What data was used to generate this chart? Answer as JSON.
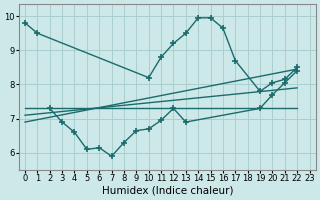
{
  "bg_color": "#cde8e8",
  "grid_color": "#aacfcf",
  "line_color": "#1a6b6b",
  "marker": "+",
  "markersize": 4,
  "linewidth": 1.0,
  "series1_x": [
    0,
    1,
    10,
    11,
    12,
    13,
    14,
    15,
    16,
    17,
    19,
    20,
    21,
    22
  ],
  "series1_y": [
    9.8,
    9.5,
    8.2,
    8.8,
    9.2,
    9.5,
    9.95,
    9.95,
    9.65,
    8.7,
    7.8,
    8.05,
    8.15,
    8.5
  ],
  "series2_x": [
    2,
    3,
    4,
    5,
    6,
    7,
    8,
    9,
    10,
    11,
    12,
    13,
    19,
    20,
    21,
    22
  ],
  "series2_y": [
    7.3,
    6.9,
    6.6,
    6.1,
    6.15,
    5.9,
    6.3,
    6.65,
    6.7,
    6.95,
    7.3,
    6.9,
    7.3,
    7.7,
    8.05,
    8.4
  ],
  "line1_x": [
    0,
    22
  ],
  "line1_y": [
    7.3,
    7.3
  ],
  "line2_x": [
    0,
    22
  ],
  "line2_y": [
    7.1,
    7.9
  ],
  "line3_x": [
    0,
    22
  ],
  "line3_y": [
    6.9,
    8.45
  ],
  "xlim": [
    -0.5,
    23.5
  ],
  "ylim": [
    5.5,
    10.35
  ],
  "yticks": [
    6,
    7,
    8,
    9,
    10
  ],
  "xticks": [
    0,
    1,
    2,
    3,
    4,
    5,
    6,
    7,
    8,
    9,
    10,
    11,
    12,
    13,
    14,
    15,
    16,
    17,
    18,
    19,
    20,
    21,
    22,
    23
  ],
  "xlabel": "Humidex (Indice chaleur)",
  "xlabel_fontsize": 7.5,
  "tick_fontsize": 6
}
